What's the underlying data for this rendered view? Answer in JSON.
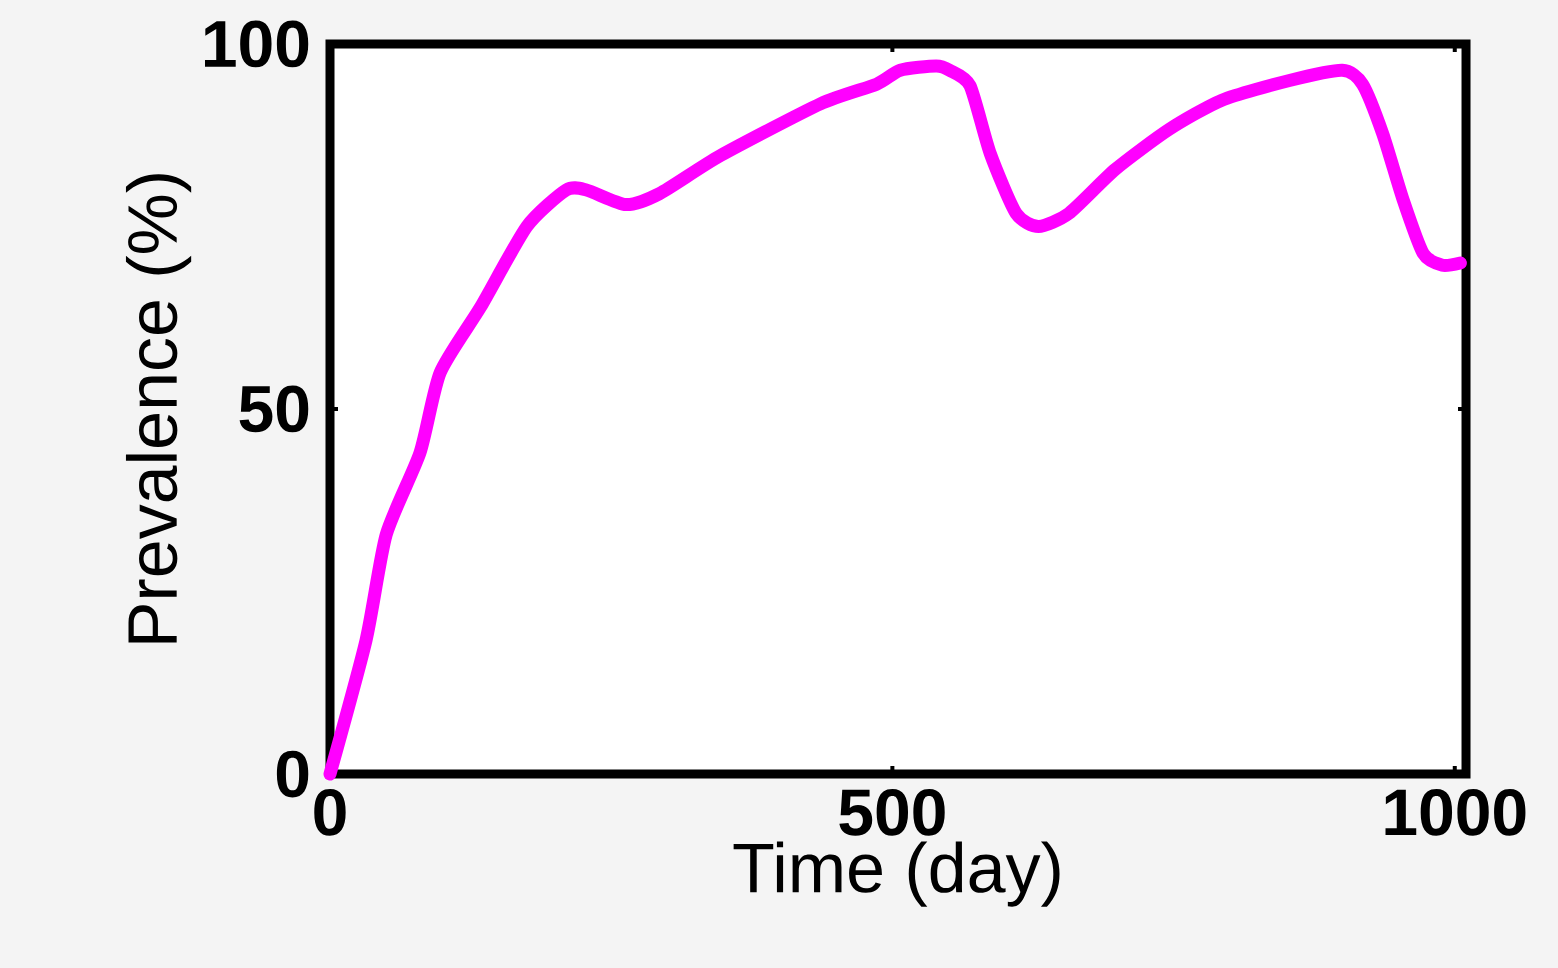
{
  "chart_data": {
    "type": "line",
    "xlabel": "Time (day)",
    "ylabel": "Prevalence (%)",
    "xlim": [
      0,
      1010
    ],
    "ylim": [
      0,
      100
    ],
    "xticks": [
      0,
      500,
      1000
    ],
    "yticks": [
      0,
      50,
      100
    ],
    "grid": false,
    "marker": "none",
    "line_style": "solid",
    "series": [
      {
        "color": "#ff00ff",
        "x": [
          0,
          32,
          50,
          80,
          98,
          134,
          175,
          210,
          228,
          263,
          293,
          347,
          436,
          486,
          507,
          539,
          551,
          569,
          587,
          610,
          630,
          657,
          698,
          746,
          793,
          853,
          900,
          918,
          936,
          954,
          972,
          989,
          1005
        ],
        "values": [
          0,
          18.3,
          32.8,
          44,
          55,
          64,
          75,
          80,
          80,
          78,
          79.5,
          84.7,
          91.8,
          94.5,
          96.4,
          97,
          96.4,
          94.3,
          85,
          76.8,
          75,
          76.8,
          82.8,
          88.3,
          92.3,
          95,
          96.4,
          94.5,
          87.7,
          78.7,
          71.3,
          69.7,
          70
        ]
      }
    ]
  }
}
